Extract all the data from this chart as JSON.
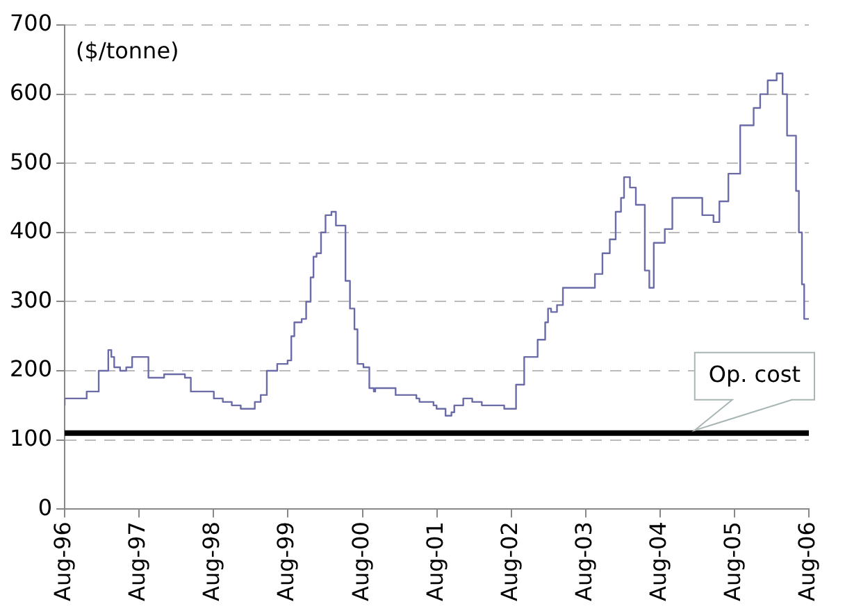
{
  "chart_data": {
    "type": "step",
    "ylabel": "($/tonne)",
    "xlim": [
      "1996-08",
      "2006-08"
    ],
    "xticks": [
      {
        "value": "1996-08",
        "label": "Aug-96"
      },
      {
        "value": "1997-08",
        "label": "Aug-97"
      },
      {
        "value": "1998-08",
        "label": "Aug-98"
      },
      {
        "value": "1999-08",
        "label": "Aug-99"
      },
      {
        "value": "2000-08",
        "label": "Aug-00"
      },
      {
        "value": "2001-08",
        "label": "Aug-01"
      },
      {
        "value": "2002-08",
        "label": "Aug-02"
      },
      {
        "value": "2003-08",
        "label": "Aug-03"
      },
      {
        "value": "2004-08",
        "label": "Aug-04"
      },
      {
        "value": "2005-08",
        "label": "Aug-05"
      },
      {
        "value": "2006-08",
        "label": "Aug-06"
      }
    ],
    "ylim": [
      0,
      700
    ],
    "yticks": [
      0,
      100,
      200,
      300,
      400,
      500,
      600,
      700
    ],
    "grid": "y",
    "line_style": "solid",
    "marker": "none",
    "series": [
      {
        "color": "#6b6ba8",
        "x": [
          "1996-08-01",
          "1996-11-17",
          "1997-01-15",
          "1997-03-03",
          "1997-03-18",
          "1997-04-01",
          "1997-04-30",
          "1997-05-30",
          "1997-06-28",
          "1997-08-11",
          "1997-09-16",
          "1997-12-02",
          "1998-03-14",
          "1998-04-12",
          "1998-08-03",
          "1998-09-16",
          "1998-10-30",
          "1998-12-13",
          "1999-02-20",
          "1999-03-21",
          "1999-04-20",
          "1999-06-10",
          "1999-07-31",
          "1999-08-18",
          "1999-09-02",
          "1999-10-08",
          "1999-10-30",
          "1999-11-21",
          "1999-12-05",
          "1999-12-20",
          "2000-01-11",
          "2000-02-02",
          "2000-03-02",
          "2000-03-24",
          "2000-05-10",
          "2000-06-01",
          "2000-06-23",
          "2000-07-08",
          "2000-08-06",
          "2000-09-04",
          "2000-09-26",
          "2000-10-03",
          "2001-01-11",
          "2001-04-23",
          "2001-05-08",
          "2001-07-16",
          "2001-07-31",
          "2001-09-13",
          "2001-10-12",
          "2001-10-26",
          "2001-12-09",
          "2002-01-22",
          "2002-03-10",
          "2002-06-28",
          "2002-08-25",
          "2002-10-04",
          "2002-12-09",
          "2003-01-15",
          "2003-01-29",
          "2003-02-13",
          "2003-03-14",
          "2003-04-12",
          "2003-09-16",
          "2003-10-23",
          "2003-11-28",
          "2003-12-27",
          "2004-01-22",
          "2004-02-06",
          "2004-03-06",
          "2004-04-04",
          "2004-05-18",
          "2004-06-09",
          "2004-06-16",
          "2004-07-01",
          "2004-08-24",
          "2004-09-30",
          "2005-02-24",
          "2005-04-20",
          "2005-05-19",
          "2005-07-02",
          "2005-08-29",
          "2005-11-03",
          "2005-12-05",
          "2006-01-11",
          "2006-02-24",
          "2006-03-25",
          "2006-04-16",
          "2006-05-30",
          "2006-06-13",
          "2006-06-28",
          "2006-07-09",
          "2006-08-01"
        ],
        "values": [
          150,
          160,
          170,
          200,
          230,
          220,
          205,
          200,
          205,
          220,
          220,
          190,
          195,
          190,
          170,
          160,
          155,
          150,
          145,
          155,
          165,
          200,
          210,
          215,
          250,
          270,
          275,
          300,
          335,
          365,
          370,
          400,
          425,
          430,
          410,
          330,
          290,
          260,
          210,
          205,
          175,
          170,
          175,
          165,
          160,
          155,
          150,
          145,
          135,
          140,
          150,
          160,
          155,
          150,
          145,
          180,
          220,
          245,
          270,
          290,
          285,
          295,
          320,
          340,
          370,
          390,
          430,
          450,
          480,
          465,
          440,
          345,
          320,
          320,
          385,
          405,
          450,
          425,
          415,
          445,
          485,
          555,
          580,
          600,
          620,
          630,
          600,
          540,
          460,
          400,
          325,
          275
        ]
      }
    ],
    "ref_lines": [
      {
        "axis": "y",
        "value": 110,
        "label": "Op. cost",
        "color": "#000000"
      }
    ]
  }
}
